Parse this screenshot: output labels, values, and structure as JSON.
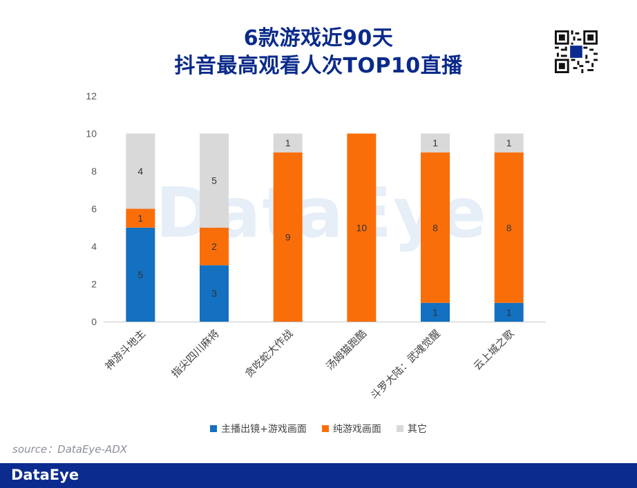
{
  "title": {
    "line1": "6款游戏近90天",
    "line2": "抖音最高观看人次TOP10直播"
  },
  "watermark": "DataEye",
  "source": "source：DataEye-ADX",
  "footer": {
    "logo": "DataEye"
  },
  "colors": {
    "series_blue": "#1470c0",
    "series_orange": "#fa6e0a",
    "series_gray": "#d9d9d9",
    "title": "#0a2a8a",
    "footer": "#0b2b8e"
  },
  "icons": {
    "qr": "qr-code-icon"
  },
  "chart_data": {
    "type": "bar",
    "stacked": true,
    "title": "",
    "xlabel": "",
    "ylabel": "",
    "ylim": [
      0,
      12
    ],
    "yticks": [
      0,
      2,
      4,
      6,
      8,
      10,
      12
    ],
    "grid": false,
    "legend_position": "bottom",
    "categories": [
      "神游斗地主",
      "指尖四川麻将",
      "贪吃蛇大作战",
      "汤姆猫跑酷",
      "斗罗大陆：武魂觉醒",
      "云上城之歌"
    ],
    "series": [
      {
        "name": "主播出镜+游戏画面",
        "color": "#1470c0",
        "values": [
          5,
          3,
          0,
          0,
          1,
          1
        ]
      },
      {
        "name": "纯游戏画面",
        "color": "#fa6e0a",
        "values": [
          1,
          2,
          9,
          10,
          8,
          8
        ]
      },
      {
        "name": "其它",
        "color": "#d9d9d9",
        "values": [
          4,
          5,
          1,
          0,
          1,
          1
        ]
      }
    ]
  }
}
